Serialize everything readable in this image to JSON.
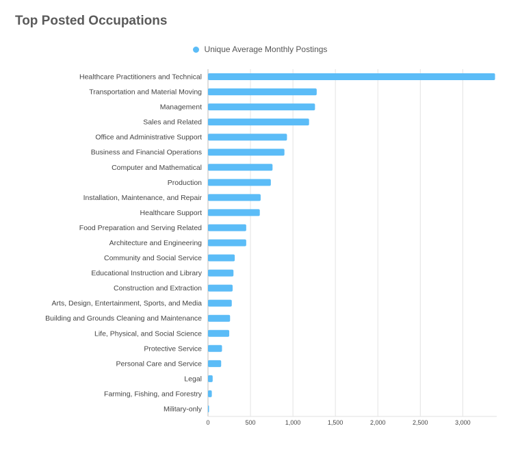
{
  "page": {
    "title": "Top Posted Occupations"
  },
  "colors": {
    "bar": "#5bbcf7",
    "grid": "#e2e2e2",
    "axis": "#bdbdbd"
  },
  "chart_data": {
    "type": "bar",
    "orientation": "horizontal",
    "title": "Top Posted Occupations",
    "legend": {
      "position": "top-center",
      "entries": [
        "Unique Average Monthly Postings"
      ]
    },
    "grid": true,
    "xlim": [
      0,
      3400
    ],
    "xticks": [
      0,
      500,
      1000,
      1500,
      2000,
      2500,
      3000
    ],
    "xtick_labels": [
      "0",
      "500",
      "1,000",
      "1,500",
      "2,000",
      "2,500",
      "3,000"
    ],
    "categories": [
      "Healthcare Practitioners and Technical",
      "Transportation and Material Moving",
      "Management",
      "Sales and Related",
      "Office and Administrative Support",
      "Business and Financial Operations",
      "Computer and Mathematical",
      "Production",
      "Installation, Maintenance, and Repair",
      "Healthcare Support",
      "Food Preparation and Serving Related",
      "Architecture and Engineering",
      "Community and Social Service",
      "Educational Instruction and Library",
      "Construction and Extraction",
      "Arts, Design, Entertainment, Sports, and Media",
      "Building and Grounds Cleaning and Maintenance",
      "Life, Physical, and Social Science",
      "Protective Service",
      "Personal Care and Service",
      "Legal",
      "Farming, Fishing, and Forestry",
      "Military-only"
    ],
    "series": [
      {
        "name": "Unique Average Monthly Postings",
        "values": [
          3380,
          1280,
          1260,
          1190,
          930,
          900,
          760,
          740,
          620,
          610,
          450,
          450,
          315,
          300,
          290,
          280,
          260,
          250,
          165,
          155,
          55,
          45,
          10
        ]
      }
    ]
  }
}
